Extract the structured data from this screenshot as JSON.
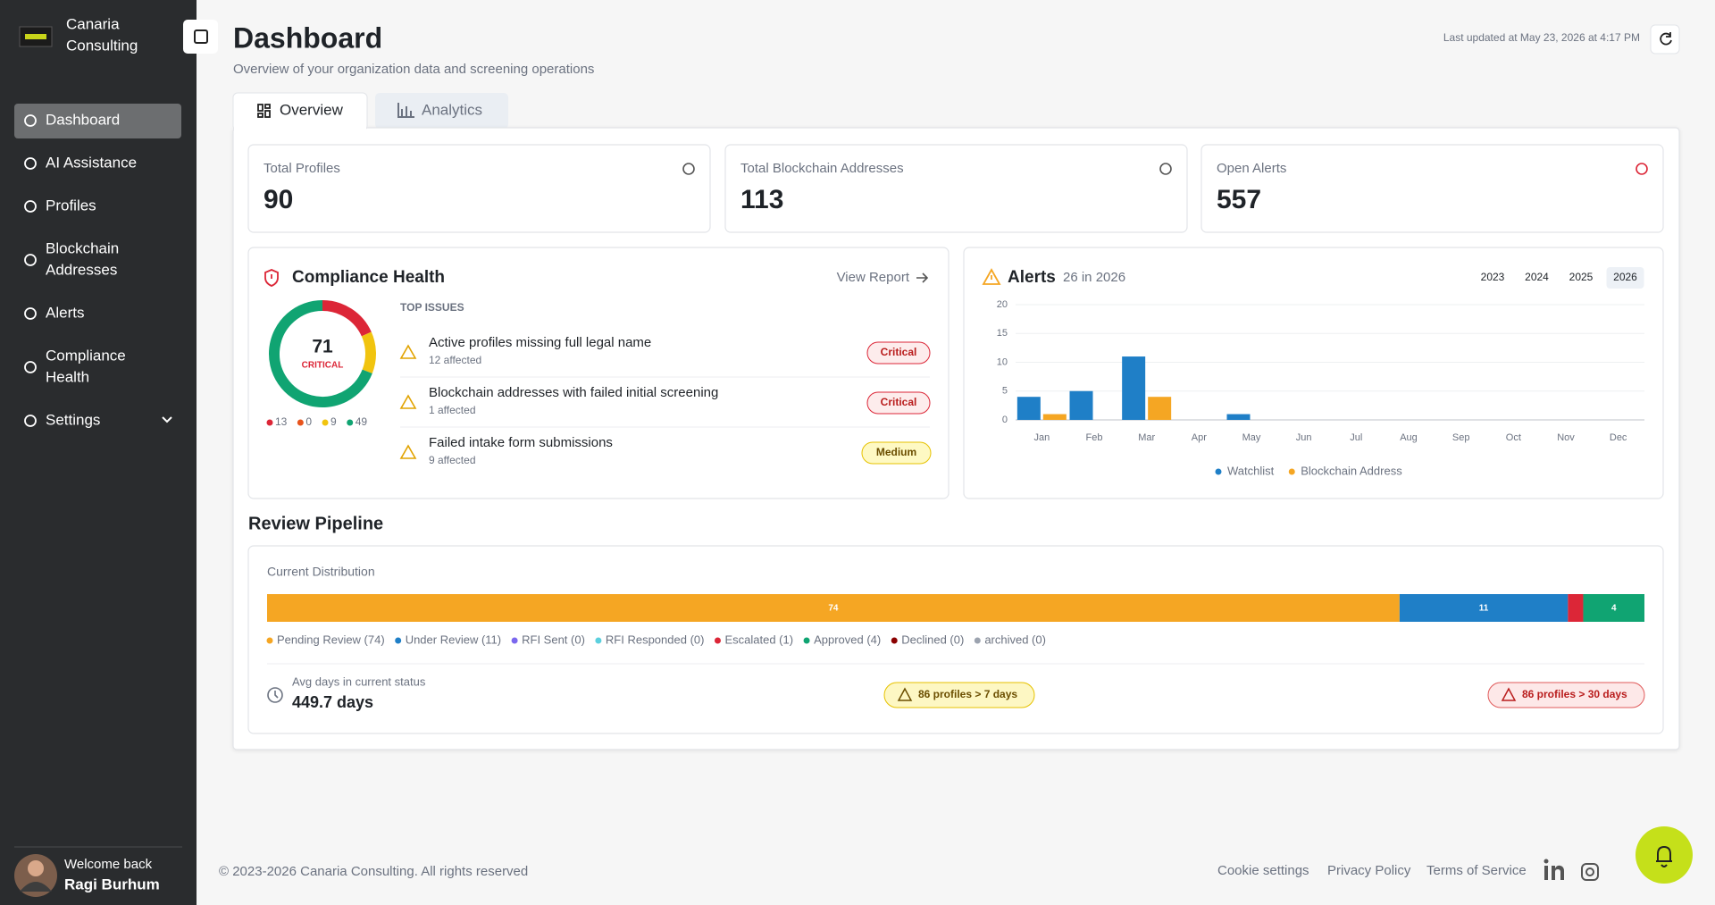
{
  "sidebar": {
    "brand": [
      "Canaria",
      "Consulting"
    ],
    "nav": [
      [
        "Dashboard"
      ],
      [
        "AI Assistance"
      ],
      [
        "Profiles"
      ],
      [
        "Blockchain",
        "Addresses"
      ],
      [
        "Alerts"
      ],
      [
        "Compliance",
        "Health"
      ],
      [
        "Settings"
      ]
    ]
  },
  "user": {
    "greeting": "Welcome back",
    "name": "Ragi Burhum"
  },
  "header": {
    "title": "Dashboard",
    "subtitle": "Overview of your organization data and screening operations",
    "last_updated": "Last updated at May 23, 2026 at 4:17 PM"
  },
  "tabs": [
    "Overview",
    "Analytics"
  ],
  "stats": [
    {
      "label": "Total Profiles",
      "value": 90
    },
    {
      "label": "Total Blockchain Addresses",
      "value": 113
    },
    {
      "label": "Open Alerts",
      "value": 557
    }
  ],
  "compliance": {
    "title": "Compliance Health",
    "link": "View Report",
    "top_issues_label": "TOP ISSUES",
    "issues": [
      {
        "title": "Active profiles missing full legal name",
        "affected": "12 affected",
        "severity": "Critical"
      },
      {
        "title": "Blockchain addresses with failed initial screening",
        "affected": "1 affected",
        "severity": "Critical"
      },
      {
        "title": "Failed intake form submissions",
        "affected": "9 affected",
        "severity": "Medium"
      }
    ]
  },
  "chart_data": [
    {
      "type": "pie",
      "donut": true,
      "center_value": 71,
      "center_label": "CRITICAL",
      "values": [
        13,
        0,
        9,
        49
      ],
      "colors": [
        "#dc2637",
        "#e8541c",
        "#f1c40f",
        "#10a472"
      ]
    },
    {
      "type": "bar",
      "title": "Alerts",
      "subtitle": "26 in 2026",
      "years": [
        "2023",
        "2024",
        "2025",
        "2026"
      ],
      "selected_year": "2026",
      "categories": [
        "Jan",
        "Feb",
        "Mar",
        "Apr",
        "May",
        "Jun",
        "Jul",
        "Aug",
        "Sep",
        "Oct",
        "Nov",
        "Dec"
      ],
      "series": [
        {
          "name": "Watchlist",
          "color": "#1f7fc7",
          "values": [
            4,
            5,
            11,
            0,
            1,
            0,
            0,
            0,
            0,
            0,
            0,
            0
          ]
        },
        {
          "name": "Blockchain Address",
          "color": "#f5a623",
          "values": [
            1,
            0,
            4,
            0,
            0,
            0,
            0,
            0,
            0,
            0,
            0,
            0
          ]
        }
      ],
      "ylim": [
        0,
        20
      ],
      "yticks": [
        0,
        5,
        10,
        15,
        20
      ],
      "grid": true,
      "legend": "bottom"
    },
    {
      "type": "stacked-bar",
      "title": "Review Pipeline",
      "subtitle": "Current Distribution",
      "xlim": [
        0,
        90
      ],
      "series": [
        {
          "name": "Pending Review",
          "label": "Pending Review (74)",
          "color": "#f5a623",
          "values": [
            74
          ]
        },
        {
          "name": "Under Review",
          "label": "Under Review (11)",
          "color": "#1f7fc7",
          "values": [
            11
          ]
        },
        {
          "name": "RFI Sent",
          "label": "RFI Sent (0)",
          "color": "#7b68ee",
          "values": [
            0
          ]
        },
        {
          "name": "RFI Responded",
          "label": "RFI Responded (0)",
          "color": "#5cd0de",
          "values": [
            0
          ]
        },
        {
          "name": "Escalated",
          "label": "Escalated (1)",
          "color": "#dc2637",
          "values": [
            1
          ]
        },
        {
          "name": "Approved",
          "label": "Approved (4)",
          "color": "#10a472",
          "values": [
            4
          ]
        },
        {
          "name": "Declined",
          "label": "Declined (0)",
          "color": "#8b0000",
          "values": [
            0
          ]
        },
        {
          "name": "archived",
          "label": "archived (0)",
          "color": "#9ca3af",
          "values": [
            0
          ]
        }
      ]
    }
  ],
  "pipeline_summary": {
    "avg_label": "Avg days in current status",
    "avg_value": "449.7 days",
    "badges": [
      "86 profiles > 7 days",
      "86 profiles > 30 days"
    ]
  },
  "footer": {
    "copyright": "© 2023-2026 Canaria Consulting. All rights reserved",
    "links": [
      "Cookie settings",
      "Privacy Policy",
      "Terms of Service"
    ]
  }
}
